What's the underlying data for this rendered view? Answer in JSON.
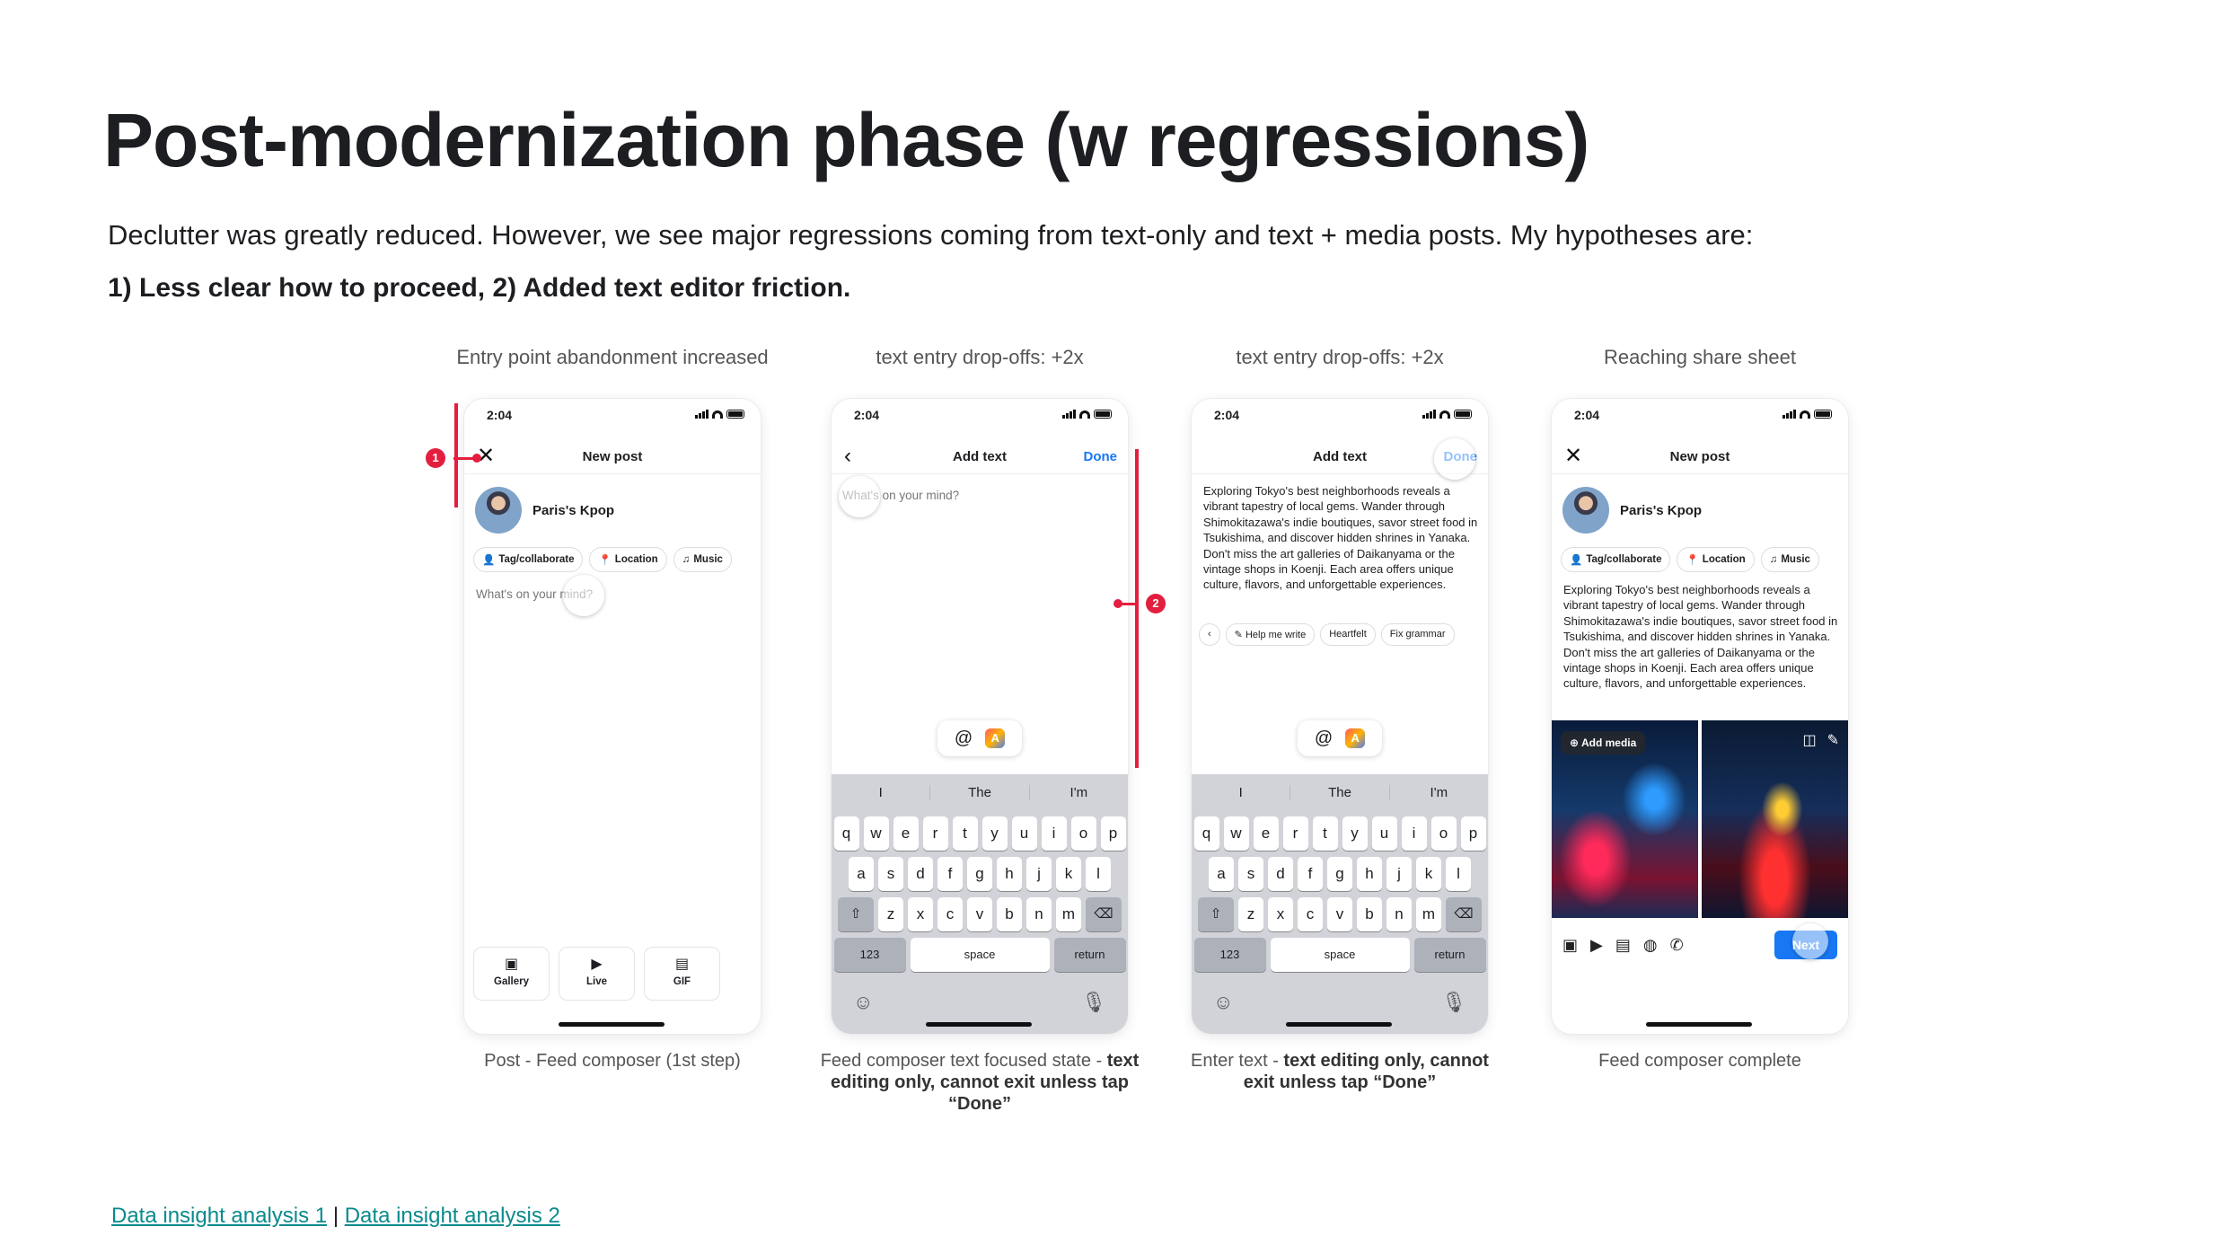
{
  "header": {
    "title": "Post-modernization phase (w regressions)",
    "subtitle": "Declutter was greatly reduced. However, we see major regressions coming from text-only and text + media posts. My hypotheses are:",
    "hypotheses": "1) Less clear how to proceed, 2) Added text editor friction."
  },
  "annotations": {
    "marker1": "1",
    "marker2": "2",
    "accent": "#e41e3f"
  },
  "columns": [
    {
      "label": "Entry point abandonment increased",
      "caption_plain": "Post - Feed composer (1st step)",
      "caption_bold": ""
    },
    {
      "label": "text entry drop-offs: +2x",
      "caption_plain": "Feed composer text focused state - ",
      "caption_bold": "text editing only, cannot exit unless tap “Done”"
    },
    {
      "label": "text entry drop-offs: +2x",
      "caption_plain": "Enter text - ",
      "caption_bold": "text editing only, cannot exit unless tap “Done”"
    },
    {
      "label": "Reaching share sheet",
      "caption_plain": "Feed composer complete",
      "caption_bold": ""
    }
  ],
  "phone": {
    "time": "2:04",
    "new_post_title": "New post",
    "add_text_title": "Add text",
    "done": "Done",
    "profile_name": "Paris's Kpop",
    "chips": [
      "Tag/collaborate",
      "Location",
      "Music"
    ],
    "placeholder": "What's on your mind?",
    "media_tiles": [
      "Gallery",
      "Live",
      "GIF"
    ],
    "post_text": "Exploring Tokyo's best neighborhoods reveals a vibrant tapestry of local gems. Wander through Shimokitazawa's indie boutiques, savor street food in Tsukishima, and discover hidden shrines in Yanaka. Don't miss the art galleries of Daikanyama or the vintage shops in Koenji. Each area offers unique culture, flavors, and unforgettable experiences.",
    "ai_chips": [
      "Help me write",
      "Heartfelt",
      "Fix grammar"
    ],
    "add_media": "Add media",
    "next": "Next",
    "keyboard": {
      "suggestions": [
        "I",
        "The",
        "I'm"
      ],
      "row1": [
        "q",
        "w",
        "e",
        "r",
        "t",
        "y",
        "u",
        "i",
        "o",
        "p"
      ],
      "row2": [
        "a",
        "s",
        "d",
        "f",
        "g",
        "h",
        "j",
        "k",
        "l"
      ],
      "row3": [
        "z",
        "x",
        "c",
        "v",
        "b",
        "n",
        "m"
      ],
      "num": "123",
      "space": "space",
      "ret": "return"
    }
  },
  "links": {
    "link1": "Data insight analysis 1",
    "separator": "|",
    "link2": "Data insight analysis 2"
  }
}
